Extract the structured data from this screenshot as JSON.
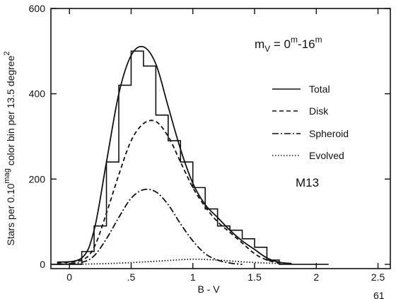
{
  "chart_data": {
    "type": "line",
    "xlabel": "B - V",
    "ylabel": "Stars per 0.10",
    "ylabel_sup": "mag",
    "ylabel_rest": " color bin per 13.5 degree",
    "ylabel_sup2": "2",
    "xlim": [
      -0.15,
      2.6
    ],
    "ylim": [
      -10,
      600
    ],
    "x_ticks": [
      0,
      0.5,
      1,
      1.5,
      2,
      2.5
    ],
    "x_tick_labels": [
      "0",
      ".5",
      "1",
      "1.5",
      "2",
      "2.5"
    ],
    "y_ticks": [
      0,
      200,
      400,
      600
    ],
    "y_tick_labels": [
      "0",
      "200",
      "400",
      "600"
    ],
    "annotation_title": "m",
    "annotation_sub": "V",
    "annotation_eq": " = 0",
    "annotation_sup1": "m",
    "annotation_dash": "-16",
    "annotation_sup2": "m",
    "cluster_label": "M13",
    "legend": [
      "Total",
      "Disk",
      "Spheroid",
      "Evolved"
    ],
    "series": [
      {
        "name": "Total",
        "style": "solid",
        "x": [
          -0.1,
          0.1,
          0.2,
          0.3,
          0.4,
          0.5,
          0.6,
          0.7,
          0.8,
          0.9,
          1.0,
          1.1,
          1.2,
          1.3,
          1.4,
          1.5,
          1.6,
          1.7,
          1.8
        ],
        "y": [
          5,
          15,
          80,
          240,
          400,
          490,
          510,
          470,
          370,
          270,
          190,
          140,
          110,
          80,
          55,
          35,
          15,
          5,
          2
        ]
      },
      {
        "name": "Disk",
        "style": "dashed",
        "x": [
          -0.1,
          0.1,
          0.2,
          0.3,
          0.4,
          0.5,
          0.6,
          0.7,
          0.8,
          0.9,
          1.0,
          1.1,
          1.2,
          1.3,
          1.4,
          1.5,
          1.6,
          1.7
        ],
        "y": [
          3,
          10,
          40,
          120,
          210,
          290,
          330,
          335,
          300,
          240,
          180,
          135,
          100,
          75,
          50,
          25,
          10,
          3
        ]
      },
      {
        "name": "Spheroid",
        "style": "dashdot",
        "x": [
          -0.1,
          0.1,
          0.2,
          0.3,
          0.4,
          0.5,
          0.6,
          0.7,
          0.8,
          0.9,
          1.0,
          1.1,
          1.2,
          1.3,
          1.4
        ],
        "y": [
          0,
          5,
          20,
          60,
          110,
          155,
          175,
          170,
          140,
          95,
          55,
          25,
          10,
          3,
          0
        ]
      },
      {
        "name": "Evolved",
        "style": "dotted",
        "x": [
          -0.1,
          0.2,
          0.5,
          0.8,
          1.0,
          1.2,
          1.4,
          1.6,
          1.8
        ],
        "y": [
          0,
          1,
          4,
          9,
          12,
          10,
          6,
          3,
          1
        ]
      }
    ],
    "histogram": {
      "bin_edges": [
        0.1,
        0.2,
        0.3,
        0.4,
        0.5,
        0.6,
        0.7,
        0.8,
        0.9,
        1.0,
        1.1,
        1.2,
        1.3,
        1.4,
        1.5,
        1.6,
        1.7
      ],
      "counts": [
        30,
        90,
        240,
        420,
        500,
        465,
        350,
        290,
        240,
        180,
        130,
        90,
        80,
        60,
        40,
        10
      ]
    },
    "corner_mark": "61"
  }
}
